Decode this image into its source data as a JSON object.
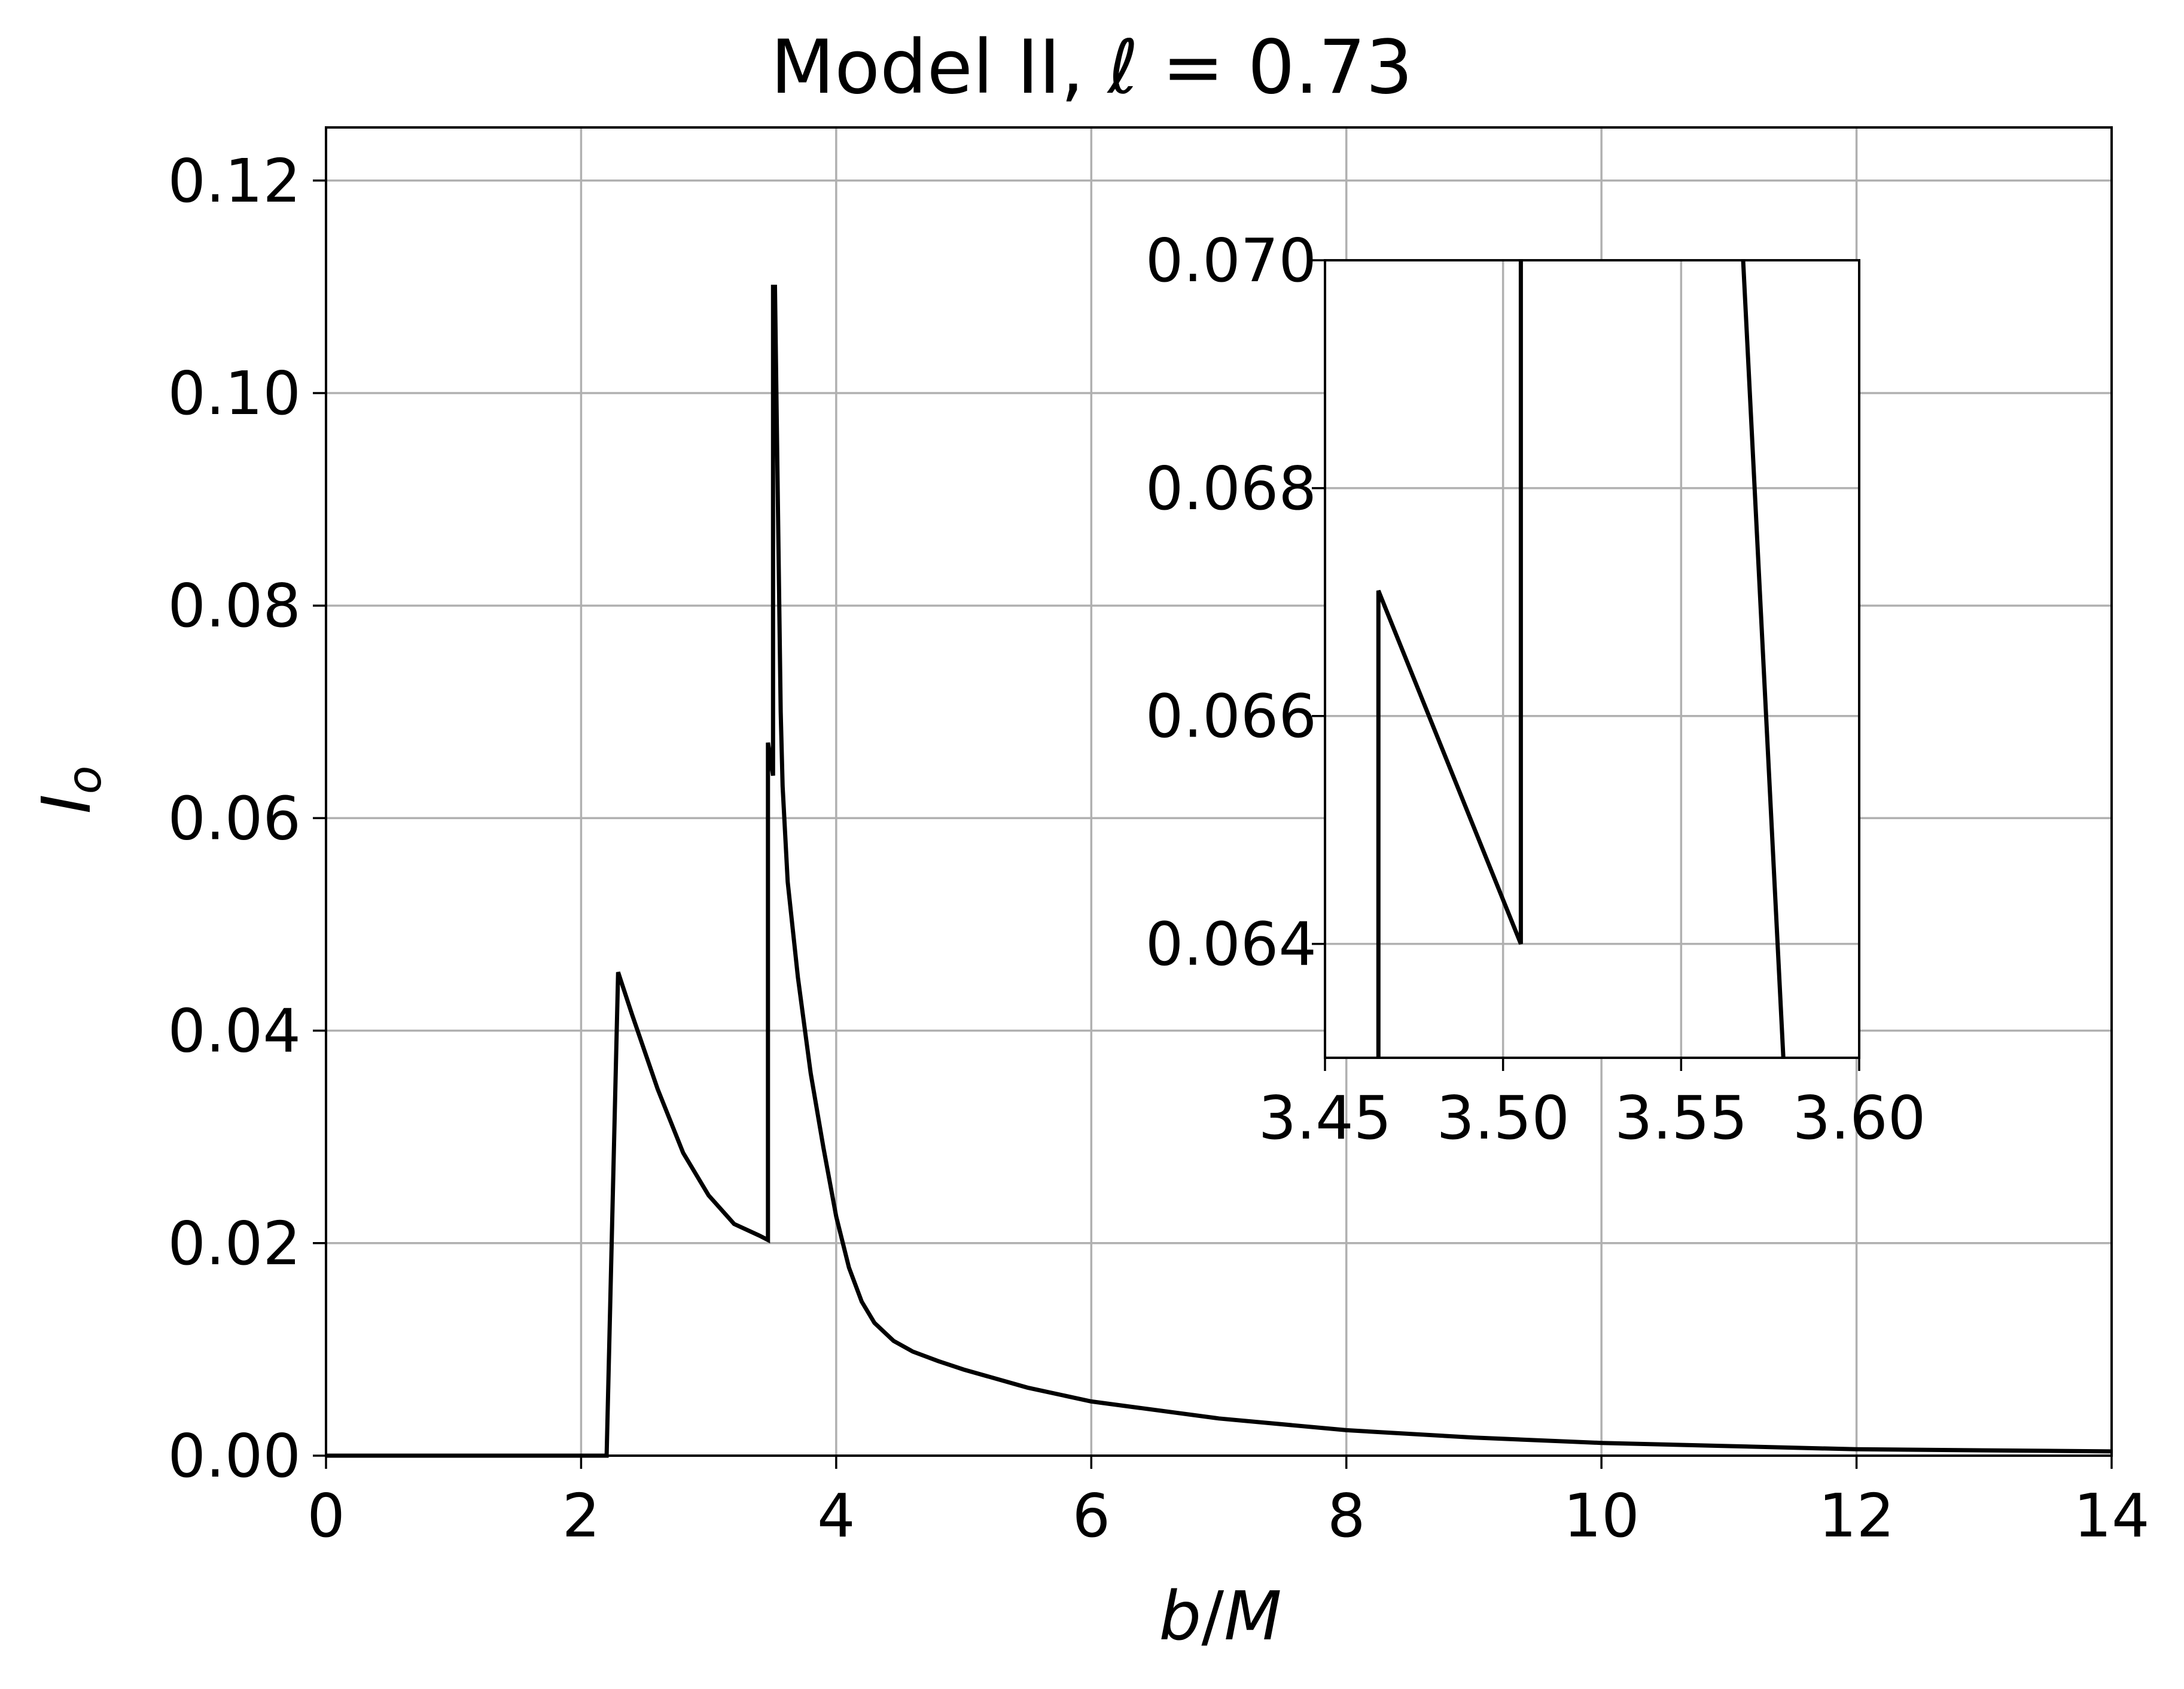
{
  "chart_data": [
    {
      "type": "line",
      "title_prefix": "Model II, ",
      "title_symbol": "ℓ",
      "title_suffix": " = 0.73",
      "xlabel_main": "b",
      "xlabel_sep": "/",
      "xlabel_unit": "M",
      "ylabel_main": "I",
      "ylabel_sub": "o",
      "xlim": [
        0,
        14
      ],
      "ylim": [
        0,
        0.125
      ],
      "xticks": [
        0,
        2,
        4,
        6,
        8,
        10,
        12,
        14
      ],
      "xtick_labels": [
        "0",
        "2",
        "4",
        "6",
        "8",
        "10",
        "12",
        "14"
      ],
      "yticks": [
        0,
        0.02,
        0.04,
        0.06,
        0.08,
        0.1,
        0.12
      ],
      "ytick_labels": [
        "0.00",
        "0.02",
        "0.04",
        "0.06",
        "0.08",
        "0.10",
        "0.12"
      ],
      "grid": true,
      "line_color": "#000000",
      "grid_color": "#b0b0b0",
      "series": [
        {
          "x": [
            0,
            2.2,
            2.29,
            2.4,
            2.6,
            2.8,
            3.0,
            3.2,
            3.4,
            3.465,
            3.465,
            3.505,
            3.505,
            3.52,
            3.565,
            3.58,
            3.62,
            3.7,
            3.8,
            3.9,
            4.0,
            4.1,
            4.2,
            4.3,
            4.45,
            4.6,
            4.8,
            5.0,
            5.5,
            6.0,
            7.0,
            8.0,
            9.0,
            10.0,
            11.0,
            12.0,
            13.0,
            14.0
          ],
          "y": [
            0,
            0,
            0.0455,
            0.0415,
            0.0345,
            0.0285,
            0.0245,
            0.0218,
            0.0207,
            0.0203,
            0.0671,
            0.064,
            0.11,
            0.11,
            0.07,
            0.063,
            0.054,
            0.045,
            0.036,
            0.029,
            0.0225,
            0.0177,
            0.0145,
            0.0125,
            0.0108,
            0.0098,
            0.0089,
            0.0081,
            0.0064,
            0.0051,
            0.0035,
            0.0024,
            0.0017,
            0.0012,
            0.0009,
            0.0006,
            0.0005,
            0.0004
          ]
        }
      ]
    },
    {
      "type": "line",
      "role": "inset",
      "xlim": [
        3.45,
        3.6
      ],
      "ylim": [
        0.063,
        0.07
      ],
      "xticks": [
        3.45,
        3.5,
        3.55,
        3.6
      ],
      "xtick_labels": [
        "3.45",
        "3.50",
        "3.55",
        "3.60"
      ],
      "yticks": [
        0.064,
        0.066,
        0.068,
        0.07
      ],
      "ytick_labels": [
        "0.064",
        "0.066",
        "0.068",
        "0.070"
      ],
      "grid": true,
      "line_color": "#000000",
      "grid_color": "#b0b0b0",
      "series": [
        {
          "x": [
            3.465,
            3.465,
            3.505,
            3.505,
            3.565,
            3.58
          ],
          "y": [
            0.0625,
            0.0671,
            0.064,
            0.0715,
            0.0715,
            0.0622
          ]
        }
      ]
    }
  ]
}
